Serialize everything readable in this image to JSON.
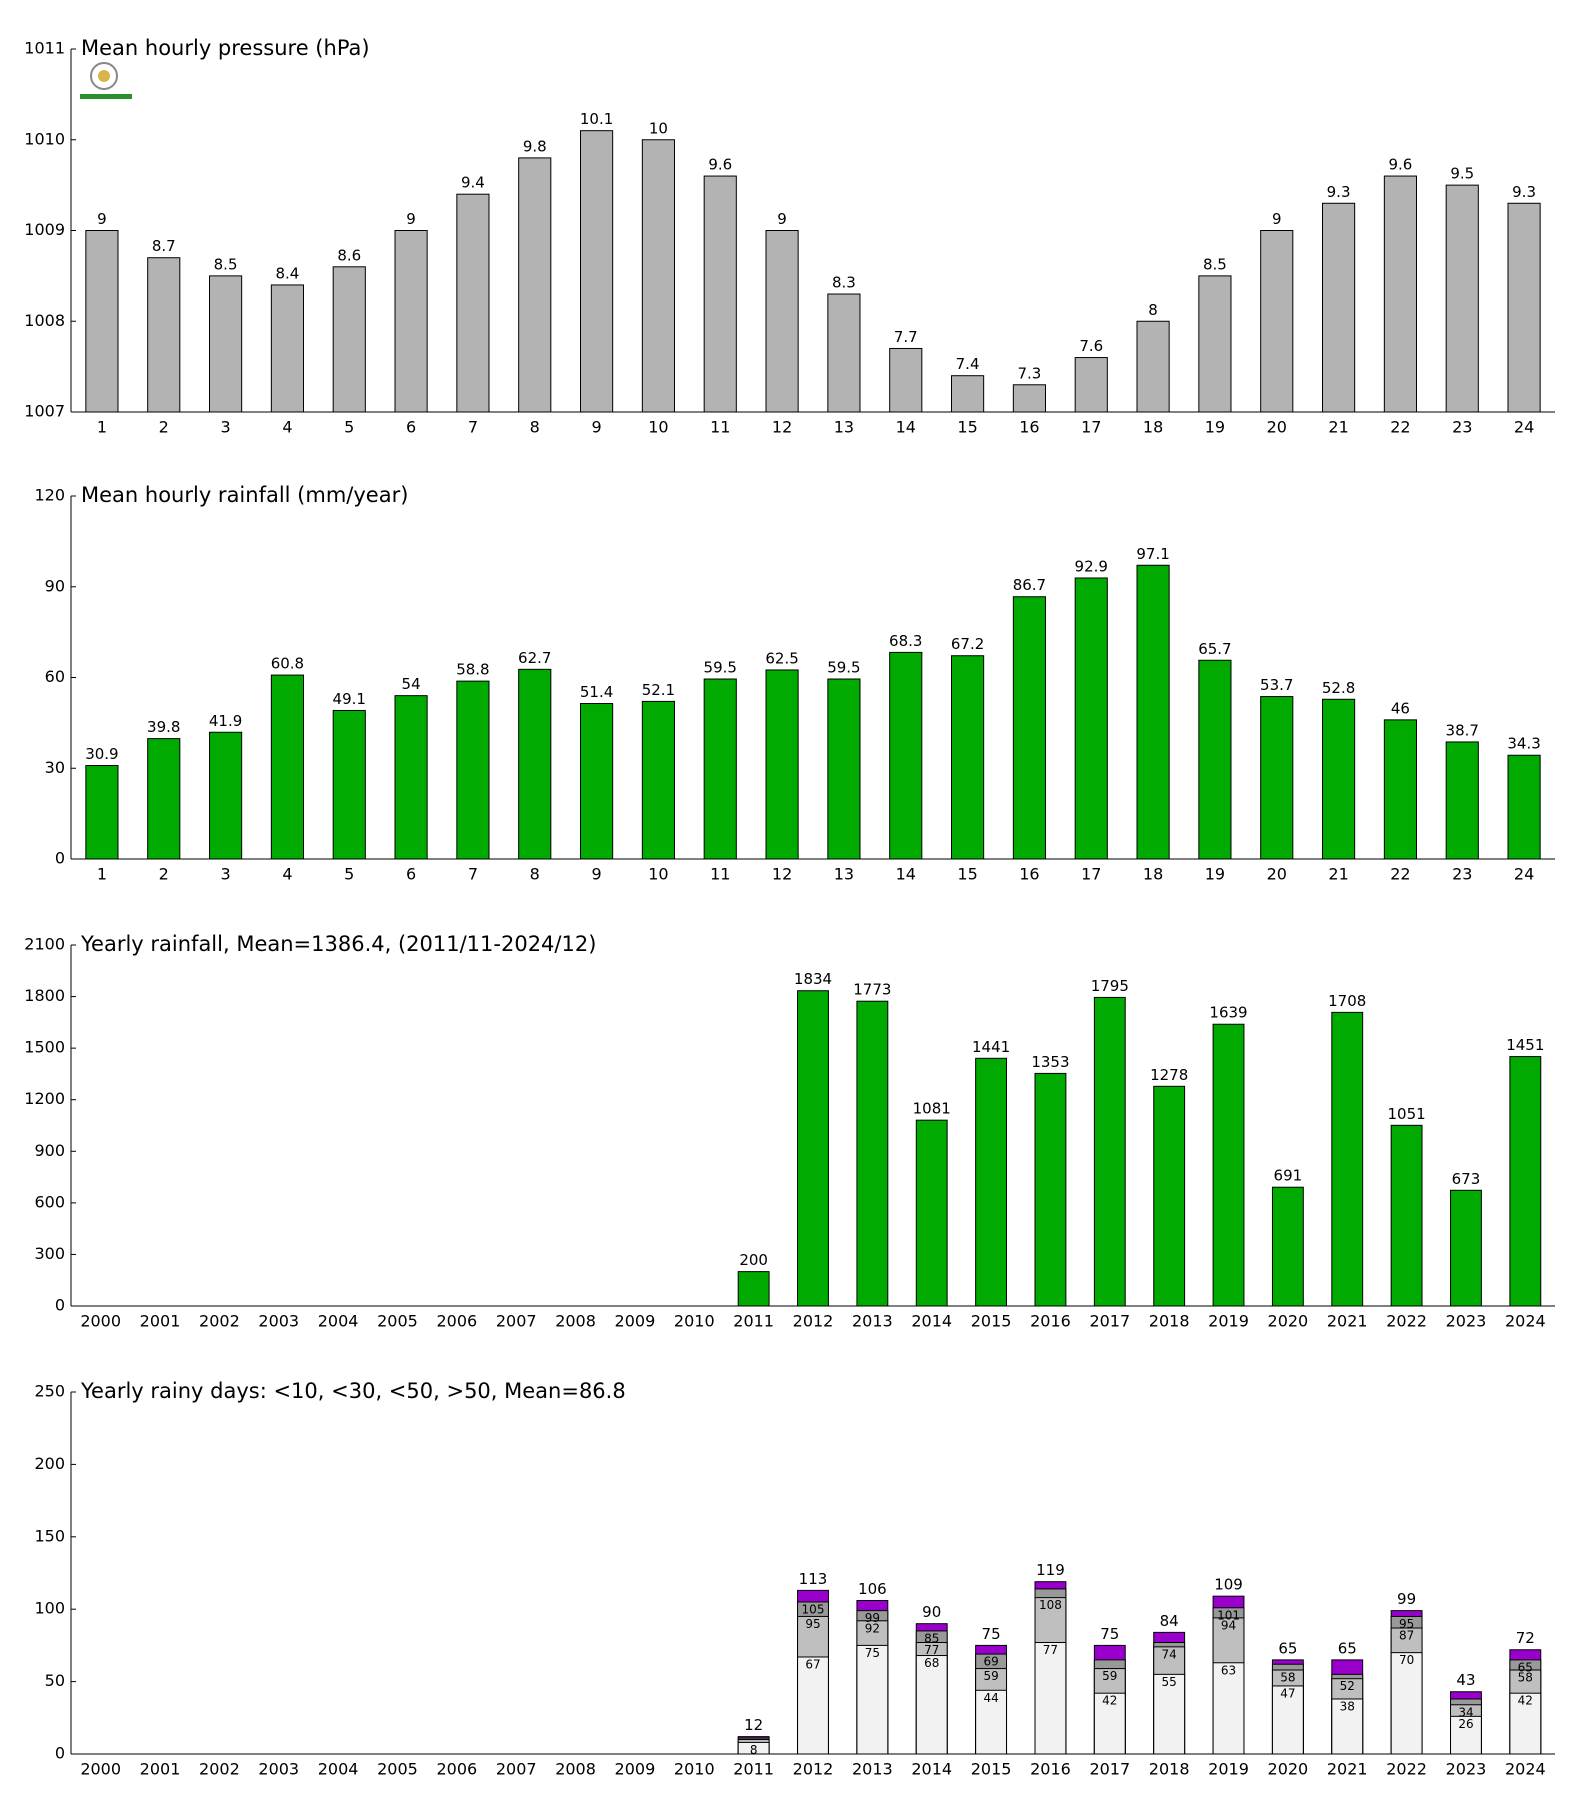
{
  "chart_data": [
    {
      "type": "bar",
      "title": "Mean hourly pressure (hPa)",
      "categories": [
        "1",
        "2",
        "3",
        "4",
        "5",
        "6",
        "7",
        "8",
        "9",
        "10",
        "11",
        "12",
        "13",
        "14",
        "15",
        "16",
        "17",
        "18",
        "19",
        "20",
        "21",
        "22",
        "23",
        "24"
      ],
      "values": [
        1009,
        1008.7,
        1008.5,
        1008.4,
        1008.6,
        1009,
        1009.4,
        1009.8,
        1010.1,
        1010,
        1009.6,
        1009,
        1008.3,
        1007.7,
        1007.4,
        1007.3,
        1007.6,
        1008,
        1008.5,
        1009,
        1009.3,
        1009.6,
        1009.5,
        1009.3
      ],
      "value_labels": [
        "9",
        "8.7",
        "8.5",
        "8.4",
        "8.6",
        "9",
        "9.4",
        "9.8",
        "10.1",
        "10",
        "9.6",
        "9",
        "8.3",
        "7.7",
        "7.4",
        "7.3",
        "7.6",
        "8",
        "8.5",
        "9",
        "9.3",
        "9.6",
        "9.5",
        "9.3"
      ],
      "color": "#b3b3b3",
      "ylim": [
        1007,
        1011
      ],
      "yticks": [
        1007,
        1008,
        1009,
        1010,
        1011
      ]
    },
    {
      "type": "bar",
      "title": "Mean hourly rainfall (mm/year)",
      "categories": [
        "1",
        "2",
        "3",
        "4",
        "5",
        "6",
        "7",
        "8",
        "9",
        "10",
        "11",
        "12",
        "13",
        "14",
        "15",
        "16",
        "17",
        "18",
        "19",
        "20",
        "21",
        "22",
        "23",
        "24"
      ],
      "values": [
        30.9,
        39.8,
        41.9,
        60.8,
        49.1,
        54,
        58.8,
        62.7,
        51.4,
        52.1,
        59.5,
        62.5,
        59.5,
        68.3,
        67.2,
        86.7,
        92.9,
        97.1,
        65.7,
        53.7,
        52.8,
        46,
        38.7,
        34.3
      ],
      "color": "#00aa00",
      "ylim": [
        0,
        120
      ],
      "yticks": [
        0,
        30,
        60,
        90,
        120
      ]
    },
    {
      "type": "bar",
      "title": "Yearly rainfall, Mean=1386.4, (2011/11-2024/12)",
      "categories": [
        "2000",
        "2001",
        "2002",
        "2003",
        "2004",
        "2005",
        "2006",
        "2007",
        "2008",
        "2009",
        "2010",
        "2011",
        "2012",
        "2013",
        "2014",
        "2015",
        "2016",
        "2017",
        "2018",
        "2019",
        "2020",
        "2021",
        "2022",
        "2023",
        "2024"
      ],
      "values": [
        null,
        null,
        null,
        null,
        null,
        null,
        null,
        null,
        null,
        null,
        null,
        200,
        1834,
        1773,
        1081,
        1441,
        1353,
        1795,
        1278,
        1639,
        691,
        1708,
        1051,
        673,
        1451
      ],
      "color": "#00aa00",
      "ylim": [
        0,
        2100
      ],
      "yticks": [
        0,
        300,
        600,
        900,
        1200,
        1500,
        1800,
        2100
      ]
    },
    {
      "type": "overlapping_bar",
      "title": "Yearly rainy days: <10, <30, <50, >50, Mean=86.8",
      "categories": [
        "2000",
        "2001",
        "2002",
        "2003",
        "2004",
        "2005",
        "2006",
        "2007",
        "2008",
        "2009",
        "2010",
        "2011",
        "2012",
        "2013",
        "2014",
        "2015",
        "2016",
        "2017",
        "2018",
        "2019",
        "2020",
        "2021",
        "2022",
        "2023",
        "2024"
      ],
      "series": [
        {
          "color": "#f2f2f2",
          "values": [
            null,
            null,
            null,
            null,
            null,
            null,
            null,
            null,
            null,
            null,
            null,
            8,
            67,
            75,
            68,
            44,
            77,
            42,
            55,
            63,
            47,
            38,
            70,
            26,
            42
          ]
        },
        {
          "color": "#bfbfbf",
          "values": [
            null,
            null,
            null,
            null,
            null,
            null,
            null,
            null,
            null,
            null,
            null,
            10,
            95,
            92,
            77,
            59,
            108,
            59,
            74,
            94,
            58,
            52,
            87,
            34,
            58
          ]
        },
        {
          "color": "#999999",
          "values": [
            null,
            null,
            null,
            null,
            null,
            null,
            null,
            null,
            null,
            null,
            null,
            11,
            105,
            99,
            85,
            69,
            114,
            65,
            77,
            101,
            62,
            55,
            95,
            38,
            65
          ]
        },
        {
          "color": "#9900cc",
          "values": [
            null,
            null,
            null,
            null,
            null,
            null,
            null,
            null,
            null,
            null,
            null,
            12,
            113,
            106,
            90,
            75,
            119,
            75,
            84,
            109,
            65,
            65,
            99,
            43,
            72
          ]
        }
      ],
      "ylim": [
        0,
        250
      ],
      "yticks": [
        0,
        50,
        100,
        150,
        200,
        250
      ]
    }
  ]
}
